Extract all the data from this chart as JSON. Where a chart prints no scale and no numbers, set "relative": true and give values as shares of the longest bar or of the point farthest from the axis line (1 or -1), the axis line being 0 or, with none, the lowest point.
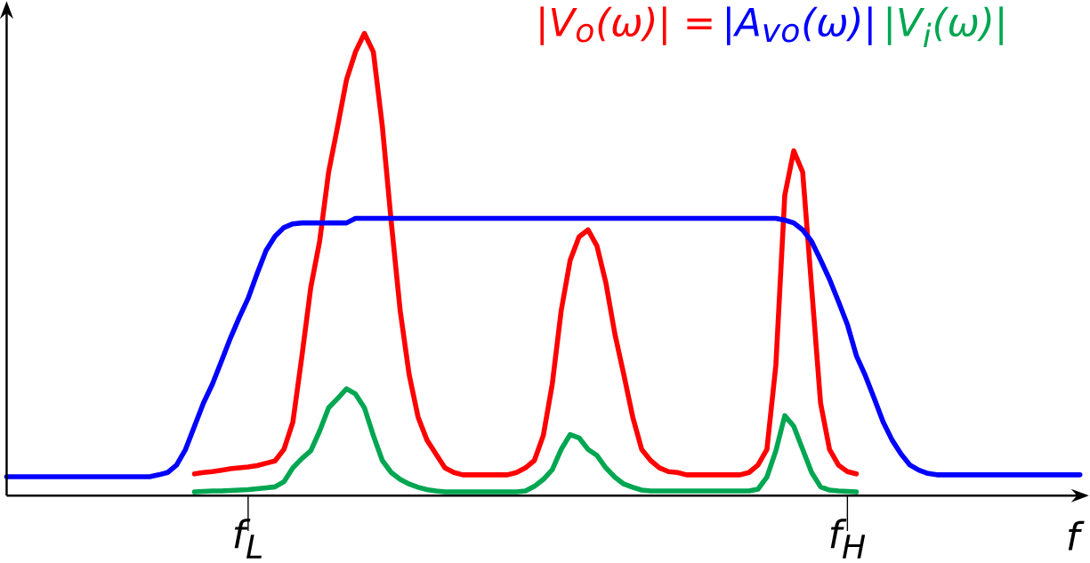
{
  "chart_data": {
    "type": "line",
    "relative": true,
    "xlabel": "f",
    "categories": [
      null,
      null,
      null,
      null,
      null,
      null,
      null,
      null,
      null,
      null,
      null,
      null,
      null,
      null,
      null,
      null,
      null,
      null,
      null,
      null,
      null,
      null,
      null,
      null,
      null,
      null,
      null,
      "f$_{L}$",
      null,
      null,
      null,
      null,
      null,
      null,
      null,
      null,
      null,
      null,
      null,
      null,
      null,
      null,
      null,
      null,
      null,
      null,
      null,
      null,
      null,
      null,
      null,
      null,
      null,
      null,
      null,
      null,
      null,
      null,
      null,
      null,
      null,
      null,
      null,
      null,
      null,
      null,
      null,
      null,
      null,
      null,
      null,
      null,
      null,
      null,
      null,
      null,
      null,
      null,
      null,
      null,
      null,
      null,
      null,
      null,
      null,
      null,
      null,
      null,
      null,
      null,
      null,
      null,
      null,
      null,
      "f$_{H}$",
      null,
      null,
      null,
      null,
      null,
      null,
      null,
      null,
      null,
      null,
      null,
      null,
      null,
      null,
      null,
      null,
      null,
      null,
      null,
      null,
      null,
      null,
      null,
      null,
      null,
      null
    ],
    "annotations": [
      "|V$_{o}$(ω)| =",
      "|A$_{vo}$(ω)|",
      "|V$_{i}$(ω)|"
    ],
    "series": [
      {
        "color": "#ff0000",
        "values": [
          null,
          null,
          null,
          null,
          null,
          null,
          null,
          null,
          null,
          null,
          null,
          null,
          null,
          null,
          null,
          null,
          null,
          null,
          null,
          null,
          null,
          0.047,
          0.05,
          0.052,
          0.055,
          0.058,
          0.06,
          0.062,
          0.065,
          0.07,
          0.075,
          0.1,
          0.159,
          0.3,
          0.45,
          0.551,
          0.7,
          0.798,
          0.9,
          0.96,
          1,
          0.96,
          0.8,
          0.592,
          0.4,
          0.262,
          0.17,
          0.12,
          0.09,
          0.06,
          0.05,
          0.045,
          0.045,
          0.045,
          0.045,
          0.045,
          0.045,
          0.05,
          0.06,
          0.076,
          0.13,
          0.241,
          0.4,
          0.509,
          0.56,
          0.575,
          0.54,
          0.46,
          0.35,
          0.262,
          0.17,
          0.1,
          0.076,
          0.06,
          0.052,
          0.05,
          0.045,
          0.045,
          0.045,
          0.045,
          0.045,
          0.045,
          0.045,
          0.05,
          0.066,
          0.1,
          0.282,
          0.65,
          0.746,
          0.7,
          0.45,
          0.2,
          0.1,
          0.066,
          0.052,
          0.047,
          null,
          null,
          null,
          null,
          null,
          null,
          null,
          null,
          null,
          null,
          null,
          null,
          null,
          null,
          null,
          null,
          null,
          null,
          null,
          null,
          null,
          null,
          null,
          null,
          null
        ]
      },
      {
        "color": "#0000ff",
        "values": [
          0.041,
          0.041,
          0.041,
          0.041,
          0.041,
          0.041,
          0.041,
          0.041,
          0.041,
          0.041,
          0.041,
          0.041,
          0.041,
          0.041,
          0.041,
          0.041,
          0.041,
          0.045,
          0.05,
          0.066,
          0.1,
          0.15,
          0.2,
          0.241,
          0.29,
          0.34,
          0.385,
          0.427,
          0.48,
          0.53,
          0.561,
          0.58,
          0.588,
          0.59,
          0.59,
          0.59,
          0.59,
          0.59,
          0.59,
          0.6,
          0.6,
          0.6,
          0.6,
          0.6,
          0.6,
          0.6,
          0.6,
          0.6,
          0.6,
          0.6,
          0.6,
          0.6,
          0.6,
          0.6,
          0.6,
          0.6,
          0.6,
          0.6,
          0.6,
          0.6,
          0.6,
          0.6,
          0.6,
          0.6,
          0.6,
          0.6,
          0.6,
          0.6,
          0.6,
          0.6,
          0.6,
          0.6,
          0.6,
          0.6,
          0.6,
          0.6,
          0.6,
          0.6,
          0.6,
          0.6,
          0.6,
          0.6,
          0.6,
          0.6,
          0.6,
          0.6,
          0.6,
          0.596,
          0.59,
          0.575,
          0.55,
          0.51,
          0.468,
          0.42,
          0.37,
          0.303,
          0.26,
          0.21,
          0.159,
          0.12,
          0.09,
          0.066,
          0.055,
          0.048,
          0.045,
          0.045,
          0.045,
          0.045,
          0.045,
          0.045,
          0.045,
          0.045,
          0.045,
          0.045,
          0.045,
          0.045,
          0.045,
          0.045,
          0.045,
          0.045,
          0.045
        ]
      },
      {
        "color": "#00a651",
        "values": [
          null,
          null,
          null,
          null,
          null,
          null,
          null,
          null,
          null,
          null,
          null,
          null,
          null,
          null,
          null,
          null,
          null,
          null,
          null,
          null,
          null,
          0.008,
          0.009,
          0.01,
          0.01,
          0.011,
          0.012,
          0.013,
          0.015,
          0.017,
          0.019,
          0.03,
          0.06,
          0.08,
          0.097,
          0.14,
          0.19,
          0.21,
          0.231,
          0.22,
          0.19,
          0.13,
          0.076,
          0.05,
          0.035,
          0.025,
          0.018,
          0.013,
          0.01,
          0.008,
          0.008,
          0.008,
          0.008,
          0.008,
          0.008,
          0.008,
          0.008,
          0.008,
          0.01,
          0.02,
          0.035,
          0.056,
          0.1,
          0.132,
          0.125,
          0.1,
          0.087,
          0.06,
          0.04,
          0.025,
          0.018,
          0.012,
          0.01,
          0.01,
          0.01,
          0.01,
          0.01,
          0.01,
          0.01,
          0.01,
          0.01,
          0.01,
          0.01,
          0.01,
          0.014,
          0.04,
          0.097,
          0.173,
          0.15,
          0.1,
          0.05,
          0.019,
          0.012,
          0.01,
          0.009,
          0.008,
          null,
          null,
          null,
          null,
          null,
          null,
          null,
          null,
          null,
          null,
          null,
          null,
          null,
          null,
          null,
          null,
          null,
          null,
          null,
          null,
          null,
          null,
          null,
          null,
          null
        ]
      }
    ]
  }
}
